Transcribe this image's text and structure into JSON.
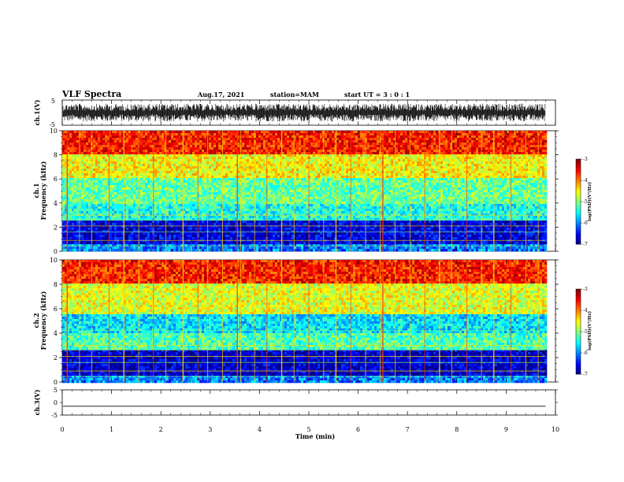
{
  "header": {
    "title": "VLF Spectra",
    "date": "Aug.17, 2021",
    "station": "station=MAM",
    "start": "start UT =  3 : 0 : 1"
  },
  "chart_data": [
    {
      "type": "line",
      "ylabel": "ch.1(V)",
      "ylim": [
        -5,
        5
      ],
      "yticks": [
        "5",
        "-5"
      ],
      "xlim": [
        0,
        10
      ],
      "description_level": "noise",
      "envelope": [
        -3.5,
        3.5
      ]
    },
    {
      "type": "heatmap",
      "ylabel_line1": "ch.1",
      "ylabel_line2": "Frequency (kHz)",
      "ylim": [
        0,
        10
      ],
      "yticks": [
        "0",
        "2",
        "4",
        "6",
        "8",
        "10"
      ],
      "xlim": [
        0,
        9.8
      ],
      "colorbar": {
        "label": "log(PSD)(V²/Hz)",
        "range": [
          -7,
          -3
        ],
        "ticks": [
          "-3",
          "-4",
          "-5",
          "-6",
          "-7"
        ]
      },
      "bands": [
        {
          "from": 0,
          "to": 0.5,
          "level": -6.0
        },
        {
          "from": 0.5,
          "to": 2.6,
          "level": -6.6
        },
        {
          "from": 2.6,
          "to": 4.0,
          "level": -5.4
        },
        {
          "from": 4.0,
          "to": 6.0,
          "level": -5.1
        },
        {
          "from": 6.0,
          "to": 8.0,
          "level": -4.5
        },
        {
          "from": 8.0,
          "to": 10.0,
          "level": -3.6
        }
      ]
    },
    {
      "type": "heatmap",
      "ylabel_line1": "ch.2",
      "ylabel_line2": "Frequency (kHz)",
      "ylim": [
        0,
        10
      ],
      "yticks": [
        "0",
        "2",
        "4",
        "6",
        "8",
        "10"
      ],
      "xlim": [
        0,
        9.8
      ],
      "colorbar": {
        "label": "log(PSD)(V²/Hz)",
        "range": [
          -7,
          -3
        ],
        "ticks": [
          "-3",
          "-4",
          "-5",
          "-6",
          "-7"
        ]
      },
      "bands": [
        {
          "from": 0,
          "to": 0.5,
          "level": -6.0
        },
        {
          "from": 0.5,
          "to": 2.6,
          "level": -6.7
        },
        {
          "from": 2.6,
          "to": 4.0,
          "level": -5.2
        },
        {
          "from": 4.0,
          "to": 5.5,
          "level": -5.6
        },
        {
          "from": 5.5,
          "to": 8.0,
          "level": -4.6
        },
        {
          "from": 8.0,
          "to": 10.0,
          "level": -3.6
        }
      ]
    },
    {
      "type": "line",
      "ylabel": "ch.3(V)",
      "ylim": [
        -5,
        5
      ],
      "yticks": [
        "5",
        "0",
        "-5"
      ],
      "xlim": [
        0,
        10
      ],
      "values": [
        -1.5,
        -1.5
      ]
    }
  ],
  "xaxis": {
    "label": "Time (min)",
    "range": [
      0,
      10
    ],
    "ticks": [
      "0",
      "1",
      "2",
      "3",
      "4",
      "5",
      "6",
      "7",
      "8",
      "9",
      "10"
    ]
  },
  "impulses_min": [
    0.1,
    0.35,
    0.6,
    0.95,
    1.25,
    1.55,
    1.85,
    2.1,
    2.45,
    2.75,
    2.95,
    3.25,
    3.55,
    3.62,
    3.9,
    4.15,
    4.45,
    4.7,
    5.0,
    5.3,
    5.55,
    5.85,
    6.15,
    6.45,
    6.5,
    6.75,
    7.05,
    7.35,
    7.65,
    7.9,
    8.2,
    8.5,
    8.75,
    9.1,
    9.4,
    9.65
  ]
}
